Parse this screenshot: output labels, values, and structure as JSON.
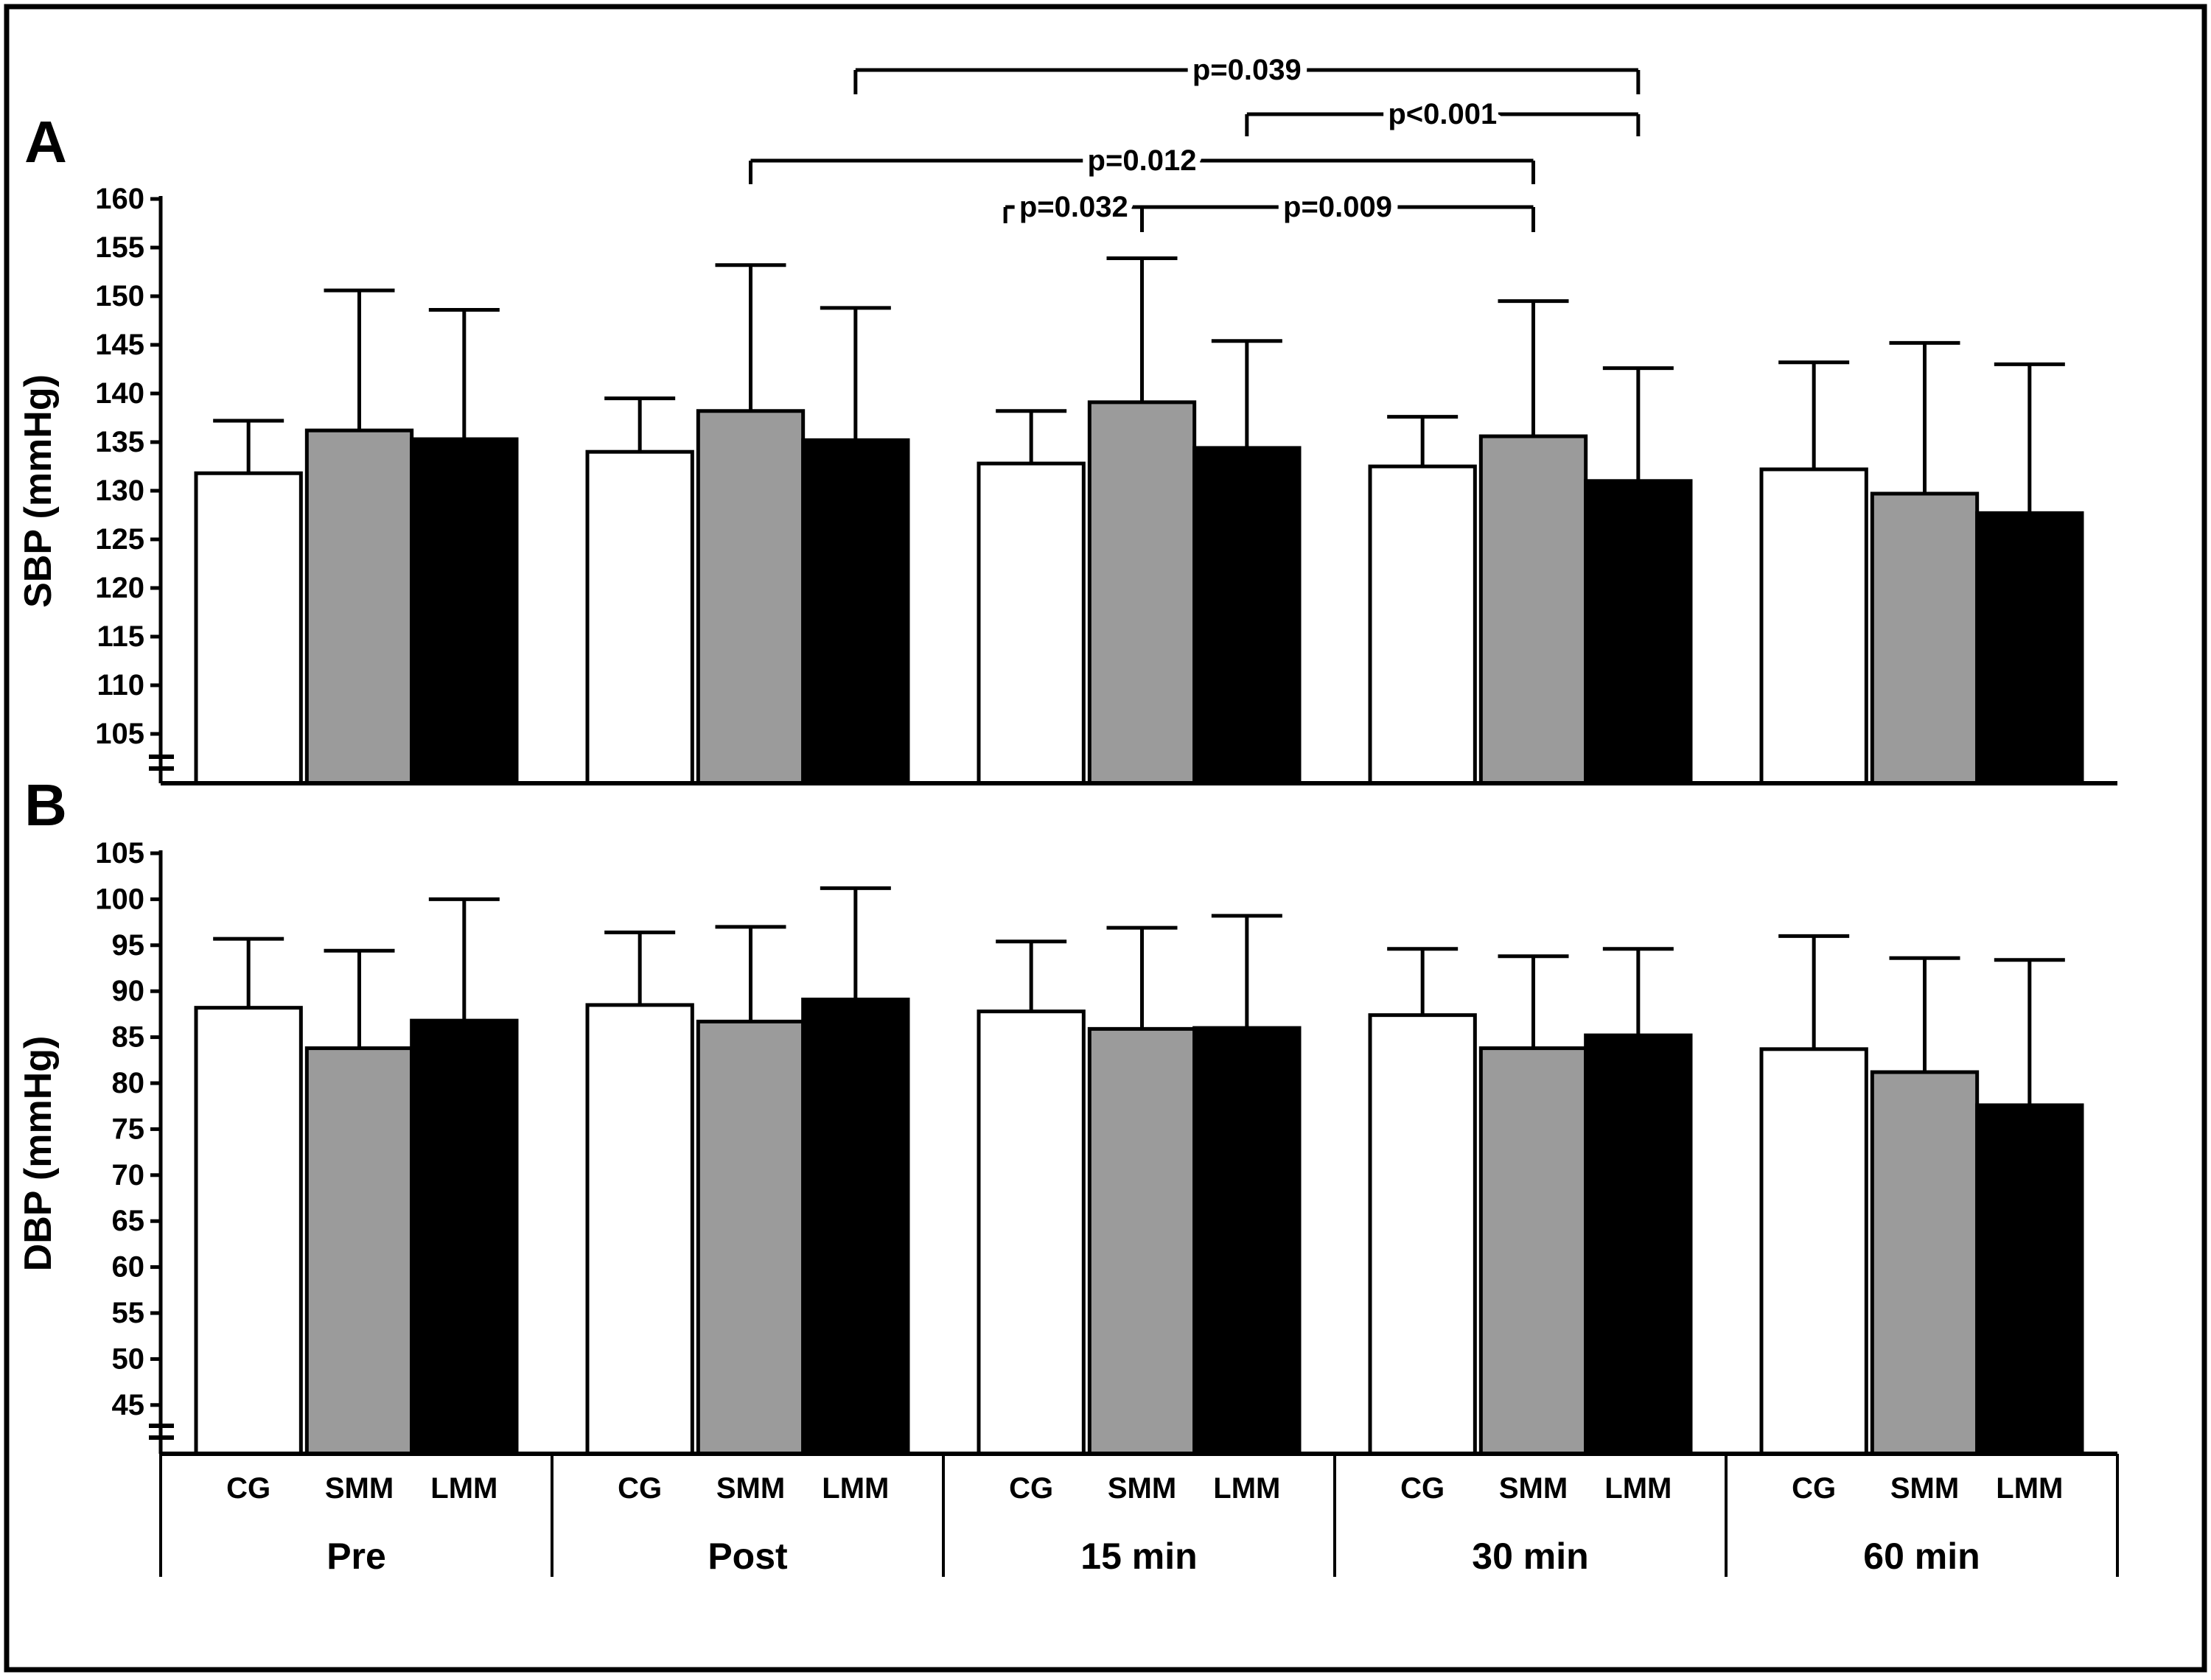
{
  "figure": {
    "description_colors": {
      "bar_white": "#ffffff",
      "bar_gray": "#9b9b9b",
      "bar_black": "#000000",
      "line": "#000000",
      "background": "#ffffff"
    }
  },
  "chart_data": [
    {
      "type": "bar",
      "panel_label": "A",
      "ylabel": "SBP (mmHg)",
      "ylim": [
        100,
        160
      ],
      "yticks": [
        160,
        155,
        150,
        145,
        140,
        135,
        130,
        125,
        120,
        115,
        110,
        105
      ],
      "axis_break": true,
      "grid": false,
      "legend_position": "none",
      "categories": [
        "Pre",
        "Post",
        "15 min",
        "30 min",
        "60 min"
      ],
      "series": [
        {
          "name": "CG",
          "fill": "#ffffff",
          "values": [
            131.8,
            134.0,
            132.8,
            132.5,
            132.2
          ],
          "err_up": [
            5.4,
            5.5,
            5.4,
            5.1,
            11.0
          ]
        },
        {
          "name": "SMM",
          "fill": "#9b9b9b",
          "values": [
            136.2,
            138.2,
            139.1,
            135.6,
            129.7
          ],
          "err_up": [
            14.4,
            15.0,
            14.8,
            13.9,
            15.5
          ]
        },
        {
          "name": "LMM",
          "fill": "#000000",
          "values": [
            135.3,
            135.2,
            134.4,
            131.0,
            127.7
          ],
          "err_up": [
            13.3,
            13.6,
            11.0,
            11.6,
            15.3
          ]
        }
      ],
      "significance": [
        {
          "label": "p=0.039",
          "from_cat": "Post",
          "from_series": "LMM",
          "to_cat": "30 min",
          "to_series": "LMM",
          "level": 1,
          "short_left": false
        },
        {
          "label": "p<0.001",
          "from_cat": "15 min",
          "from_series": "LMM",
          "to_cat": "30 min",
          "to_series": "LMM",
          "level": 2,
          "short_left": false
        },
        {
          "label": "p=0.012",
          "from_cat": "Post",
          "from_series": "SMM",
          "to_cat": "30 min",
          "to_series": "SMM",
          "level": 3,
          "short_left": false
        },
        {
          "label": "p=0.032",
          "from_cat": "15 min",
          "from_series": "CG",
          "to_cat": "15 min",
          "to_series": "SMM",
          "level": 4,
          "short_left": true
        },
        {
          "label": "p=0.009",
          "from_cat": "15 min",
          "from_series": "SMM",
          "to_cat": "30 min",
          "to_series": "SMM",
          "level": 4,
          "short_left": false
        }
      ]
    },
    {
      "type": "bar",
      "panel_label": "B",
      "ylabel": "DBP (mmHg)",
      "ylim": [
        40,
        105
      ],
      "yticks": [
        105,
        100,
        95,
        90,
        85,
        80,
        75,
        70,
        65,
        60,
        55,
        50,
        45
      ],
      "axis_break": true,
      "grid": false,
      "legend_position": "none",
      "categories": [
        "Pre",
        "Post",
        "15 min",
        "30 min",
        "60 min"
      ],
      "series": [
        {
          "name": "CG",
          "fill": "#ffffff",
          "values": [
            88.2,
            88.5,
            87.8,
            87.4,
            83.7
          ],
          "err_up": [
            7.5,
            7.9,
            7.6,
            7.2,
            12.3
          ]
        },
        {
          "name": "SMM",
          "fill": "#9b9b9b",
          "values": [
            83.8,
            86.7,
            85.9,
            83.8,
            81.2
          ],
          "err_up": [
            10.6,
            10.3,
            11.0,
            10.0,
            12.4
          ]
        },
        {
          "name": "LMM",
          "fill": "#000000",
          "values": [
            86.8,
            89.1,
            86.0,
            85.2,
            77.6
          ],
          "err_up": [
            13.2,
            12.1,
            12.2,
            9.4,
            15.8
          ]
        }
      ],
      "series_axis_labels": [
        "CG",
        "SMM",
        "LMM"
      ],
      "show_series_labels": true
    }
  ]
}
